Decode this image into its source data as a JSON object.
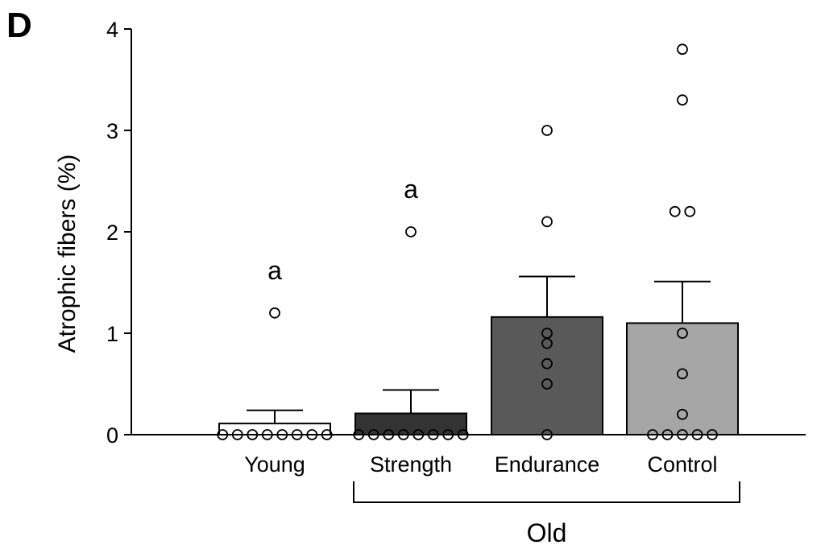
{
  "panel_label": "D",
  "chart_data": {
    "type": "bar",
    "title": "",
    "xlabel": "",
    "ylabel": "Atrophic fibers  (%)",
    "ylim": [
      0,
      4
    ],
    "yticks": [
      0,
      1,
      2,
      3,
      4
    ],
    "categories": [
      "Young",
      "Strength",
      "Endurance",
      "Control"
    ],
    "values": [
      0.11,
      0.21,
      1.16,
      1.1
    ],
    "errors": [
      0.13,
      0.23,
      0.4,
      0.41
    ],
    "bar_colors": [
      "#ffffff",
      "#333333",
      "#595959",
      "#a6a6a6"
    ],
    "points": [
      [
        0,
        0,
        0,
        0,
        0,
        0,
        0,
        0,
        1.2
      ],
      [
        0,
        0,
        0,
        0,
        0,
        0,
        0,
        0,
        2.0
      ],
      [
        0,
        0.5,
        0.7,
        0.9,
        1.0,
        2.1,
        3.0
      ],
      [
        0,
        0,
        0,
        0,
        0,
        0.2,
        0.6,
        1.0,
        2.2,
        2.2,
        3.3,
        3.8
      ]
    ],
    "significance": [
      "a",
      "a",
      "",
      ""
    ],
    "group_bracket": {
      "label": "Old",
      "from_category": 1,
      "to_category": 3
    },
    "grid": false,
    "legend": "none"
  }
}
